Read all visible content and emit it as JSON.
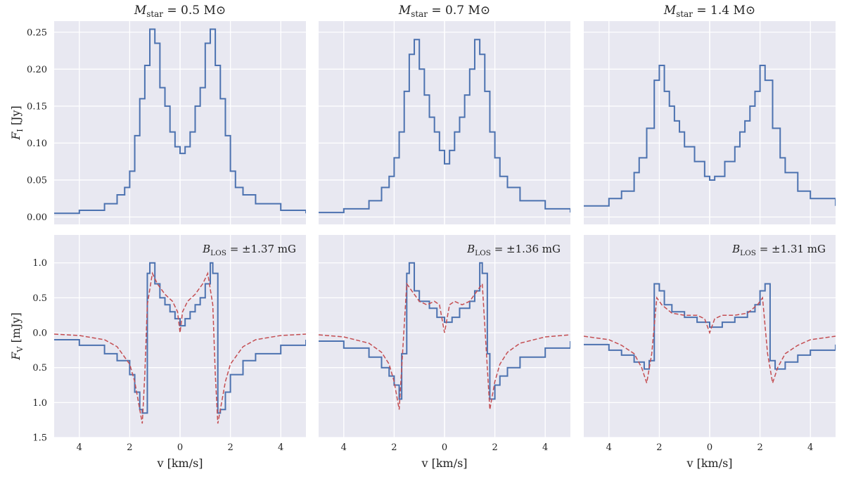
{
  "figure": {
    "column_titles": [
      "M_star = 0.5 M⊙",
      "M_star = 0.7 M⊙",
      "M_star = 1.4 M⊙"
    ],
    "top_ylabel": "F_I [Jy]",
    "bottom_ylabel": "F_V [mJy]",
    "xlabel": "v [km/s]",
    "colors": {
      "panel_bg": "#e8e8f1",
      "grid": "#ffffff",
      "stokes": "#4c72b0",
      "model": "#c44e52"
    }
  },
  "chart_data": [
    {
      "type": "line",
      "panel": "top-1",
      "title": "M_star = 0.5 M⊙",
      "xlim": [
        -5,
        5
      ],
      "ylim": [
        -0.01,
        0.265
      ],
      "xticks": [
        -4,
        -2,
        0,
        2,
        4
      ],
      "xticklabels": [
        "4",
        "2",
        "0",
        "2",
        "4"
      ],
      "yticks": [
        0,
        0.05,
        0.1,
        0.15,
        0.2,
        0.25
      ],
      "yticklabels": [
        "0.00",
        "0.05",
        "0.10",
        "0.15",
        "0.20",
        "0.25"
      ],
      "grid": true,
      "series": [
        {
          "style": "step",
          "color": "#4c72b0",
          "x": [
            -5,
            -4,
            -3,
            -2.5,
            -2.2,
            -2,
            -1.8,
            -1.6,
            -1.4,
            -1.2,
            -1.0,
            -0.8,
            -0.6,
            -0.4,
            -0.2,
            0,
            0.2,
            0.4,
            0.6,
            0.8,
            1.0,
            1.2,
            1.4,
            1.6,
            1.8,
            2,
            2.2,
            2.5,
            3,
            4,
            5
          ],
          "y": [
            0.005,
            0.009,
            0.018,
            0.03,
            0.04,
            0.062,
            0.11,
            0.16,
            0.205,
            0.254,
            0.235,
            0.175,
            0.15,
            0.115,
            0.095,
            0.086,
            0.095,
            0.115,
            0.15,
            0.175,
            0.235,
            0.254,
            0.205,
            0.16,
            0.11,
            0.062,
            0.04,
            0.03,
            0.018,
            0.009,
            0.005
          ]
        }
      ]
    },
    {
      "type": "line",
      "panel": "top-2",
      "title": "M_star = 0.7 M⊙",
      "xlim": [
        -5,
        5
      ],
      "ylim": [
        -0.01,
        0.265
      ],
      "xticks": [
        -4,
        -2,
        0,
        2,
        4
      ],
      "xticklabels": [
        "4",
        "2",
        "0",
        "2",
        "4"
      ],
      "yticks": [
        0,
        0.05,
        0.1,
        0.15,
        0.2,
        0.25
      ],
      "grid": true,
      "series": [
        {
          "style": "step",
          "color": "#4c72b0",
          "x": [
            -5,
            -4,
            -3,
            -2.5,
            -2.2,
            -2,
            -1.8,
            -1.6,
            -1.4,
            -1.2,
            -1.0,
            -0.8,
            -0.6,
            -0.4,
            -0.2,
            0,
            0.2,
            0.4,
            0.6,
            0.8,
            1.0,
            1.2,
            1.4,
            1.6,
            1.8,
            2,
            2.2,
            2.5,
            3,
            4,
            5
          ],
          "y": [
            0.006,
            0.011,
            0.022,
            0.04,
            0.055,
            0.08,
            0.115,
            0.17,
            0.22,
            0.24,
            0.2,
            0.165,
            0.135,
            0.115,
            0.09,
            0.072,
            0.09,
            0.115,
            0.135,
            0.165,
            0.2,
            0.24,
            0.22,
            0.17,
            0.115,
            0.08,
            0.055,
            0.04,
            0.022,
            0.011,
            0.006
          ]
        }
      ]
    },
    {
      "type": "line",
      "panel": "top-3",
      "title": "M_star = 1.4 M⊙",
      "xlim": [
        -5,
        5
      ],
      "ylim": [
        -0.01,
        0.265
      ],
      "xticks": [
        -4,
        -2,
        0,
        2,
        4
      ],
      "xticklabels": [
        "4",
        "2",
        "0",
        "2",
        "4"
      ],
      "yticks": [
        0,
        0.05,
        0.1,
        0.15,
        0.2,
        0.25
      ],
      "grid": true,
      "series": [
        {
          "style": "step",
          "color": "#4c72b0",
          "x": [
            -5,
            -4,
            -3.5,
            -3,
            -2.8,
            -2.5,
            -2.2,
            -2,
            -1.8,
            -1.6,
            -1.4,
            -1.2,
            -1.0,
            -0.6,
            -0.2,
            0,
            0.2,
            0.6,
            1.0,
            1.2,
            1.4,
            1.6,
            1.8,
            2,
            2.2,
            2.5,
            2.8,
            3,
            3.5,
            4,
            5
          ],
          "y": [
            0.015,
            0.025,
            0.035,
            0.06,
            0.08,
            0.12,
            0.185,
            0.205,
            0.17,
            0.15,
            0.13,
            0.115,
            0.095,
            0.075,
            0.055,
            0.05,
            0.055,
            0.075,
            0.095,
            0.115,
            0.13,
            0.15,
            0.17,
            0.205,
            0.185,
            0.12,
            0.08,
            0.06,
            0.035,
            0.025,
            0.015
          ]
        }
      ]
    },
    {
      "type": "line",
      "panel": "bottom-1",
      "annotation": "B_LOS = ±1.37 mG",
      "xlim": [
        -5,
        5
      ],
      "ylim": [
        -1.5,
        1.4
      ],
      "xticks": [
        -4,
        -2,
        0,
        2,
        4
      ],
      "xticklabels": [
        "4",
        "2",
        "0",
        "2",
        "4"
      ],
      "yticks": [
        -1.5,
        -1.0,
        -0.5,
        0,
        0.5,
        1.0
      ],
      "yticklabels": [
        "1.5",
        "1.0",
        "0.5",
        "0.0",
        "0.5",
        "1.0"
      ],
      "grid": true,
      "series": [
        {
          "style": "step",
          "color": "#4c72b0",
          "x": [
            -5,
            -4,
            -3,
            -2.5,
            -2,
            -1.8,
            -1.6,
            -1.5,
            -1.3,
            -1.2,
            -1.0,
            -0.8,
            -0.6,
            -0.4,
            -0.2,
            0,
            0.2,
            0.4,
            0.6,
            0.8,
            1.0,
            1.2,
            1.3,
            1.5,
            1.6,
            1.8,
            2,
            2.5,
            3,
            4,
            5
          ],
          "y": [
            -0.1,
            -0.18,
            -0.3,
            -0.4,
            -0.6,
            -0.85,
            -1.1,
            -1.15,
            0.85,
            1.0,
            0.7,
            0.5,
            0.4,
            0.3,
            0.2,
            0.1,
            0.2,
            0.3,
            0.4,
            0.5,
            0.7,
            1.0,
            0.85,
            -1.15,
            -1.1,
            -0.85,
            -0.6,
            -0.4,
            -0.3,
            -0.18,
            -0.1
          ]
        },
        {
          "style": "dashed",
          "color": "#c44e52",
          "x": [
            -5,
            -4,
            -3,
            -2.5,
            -2,
            -1.8,
            -1.6,
            -1.5,
            -1.4,
            -1.3,
            -1.1,
            -0.9,
            -0.6,
            -0.3,
            -0.1,
            0,
            0.1,
            0.3,
            0.6,
            0.9,
            1.1,
            1.3,
            1.4,
            1.5,
            1.6,
            1.8,
            2,
            2.5,
            3,
            4,
            5
          ],
          "y": [
            -0.02,
            -0.04,
            -0.1,
            -0.2,
            -0.45,
            -0.7,
            -1.1,
            -1.3,
            -0.6,
            0.4,
            0.85,
            0.7,
            0.55,
            0.45,
            0.3,
            0.0,
            0.3,
            0.45,
            0.55,
            0.7,
            0.85,
            0.4,
            -0.6,
            -1.3,
            -1.1,
            -0.7,
            -0.45,
            -0.2,
            -0.1,
            -0.04,
            -0.02
          ]
        }
      ]
    },
    {
      "type": "line",
      "panel": "bottom-2",
      "annotation": "B_LOS = ±1.36 mG",
      "xlim": [
        -5,
        5
      ],
      "ylim": [
        -1.5,
        1.4
      ],
      "xticks": [
        -4,
        -2,
        0,
        2,
        4
      ],
      "xticklabels": [
        "4",
        "2",
        "0",
        "2",
        "4"
      ],
      "yticks": [
        -1.5,
        -1.0,
        -0.5,
        0,
        0.5,
        1.0
      ],
      "grid": true,
      "series": [
        {
          "style": "step",
          "color": "#4c72b0",
          "x": [
            -5,
            -4,
            -3,
            -2.5,
            -2.2,
            -2,
            -1.8,
            -1.7,
            -1.5,
            -1.4,
            -1.2,
            -1.0,
            -0.6,
            -0.3,
            0,
            0.3,
            0.6,
            1.0,
            1.2,
            1.4,
            1.5,
            1.7,
            1.8,
            2,
            2.2,
            2.5,
            3,
            4,
            5
          ],
          "y": [
            -0.12,
            -0.22,
            -0.35,
            -0.5,
            -0.62,
            -0.75,
            -0.95,
            -0.3,
            0.85,
            1.0,
            0.6,
            0.45,
            0.35,
            0.22,
            0.15,
            0.22,
            0.35,
            0.45,
            0.6,
            1.0,
            0.85,
            -0.3,
            -0.95,
            -0.75,
            -0.62,
            -0.5,
            -0.35,
            -0.22,
            -0.12
          ]
        },
        {
          "style": "dashed",
          "color": "#c44e52",
          "x": [
            -5,
            -4,
            -3,
            -2.5,
            -2.2,
            -2,
            -1.8,
            -1.7,
            -1.5,
            -1.3,
            -1.0,
            -0.7,
            -0.4,
            -0.2,
            0,
            0.2,
            0.4,
            0.7,
            1.0,
            1.3,
            1.5,
            1.7,
            1.8,
            2,
            2.2,
            2.5,
            3,
            4,
            5
          ],
          "y": [
            -0.03,
            -0.06,
            -0.15,
            -0.28,
            -0.45,
            -0.7,
            -1.1,
            -0.5,
            0.7,
            0.6,
            0.45,
            0.4,
            0.45,
            0.4,
            0.0,
            0.4,
            0.45,
            0.4,
            0.45,
            0.6,
            0.7,
            -0.5,
            -1.1,
            -0.7,
            -0.45,
            -0.28,
            -0.15,
            -0.06,
            -0.03
          ]
        }
      ]
    },
    {
      "type": "line",
      "panel": "bottom-3",
      "annotation": "B_LOS = ±1.31 mG",
      "xlim": [
        -5,
        5
      ],
      "ylim": [
        -1.5,
        1.4
      ],
      "xticks": [
        -4,
        -2,
        0,
        2,
        4
      ],
      "xticklabels": [
        "4",
        "2",
        "0",
        "2",
        "4"
      ],
      "yticks": [
        -1.5,
        -1.0,
        -0.5,
        0,
        0.5,
        1.0
      ],
      "grid": true,
      "series": [
        {
          "style": "step",
          "color": "#4c72b0",
          "x": [
            -5,
            -4,
            -3.5,
            -3,
            -2.6,
            -2.4,
            -2.2,
            -2.0,
            -1.8,
            -1.5,
            -1.0,
            -0.5,
            0,
            0.5,
            1.0,
            1.5,
            1.8,
            2.0,
            2.2,
            2.4,
            2.6,
            3,
            3.5,
            4,
            5
          ],
          "y": [
            -0.17,
            -0.25,
            -0.32,
            -0.42,
            -0.52,
            -0.4,
            0.7,
            0.6,
            0.4,
            0.3,
            0.22,
            0.15,
            0.08,
            0.15,
            0.22,
            0.3,
            0.4,
            0.6,
            0.7,
            -0.4,
            -0.52,
            -0.42,
            -0.32,
            -0.25,
            -0.17
          ]
        },
        {
          "style": "dashed",
          "color": "#c44e52",
          "x": [
            -5,
            -4,
            -3.5,
            -3,
            -2.7,
            -2.5,
            -2.3,
            -2.1,
            -1.9,
            -1.5,
            -1.0,
            -0.5,
            -0.2,
            0,
            0.2,
            0.5,
            1.0,
            1.5,
            1.9,
            2.1,
            2.3,
            2.5,
            2.7,
            3,
            3.5,
            4,
            5
          ],
          "y": [
            -0.05,
            -0.1,
            -0.18,
            -0.3,
            -0.5,
            -0.72,
            -0.3,
            0.5,
            0.4,
            0.28,
            0.25,
            0.25,
            0.2,
            0.0,
            0.2,
            0.25,
            0.25,
            0.28,
            0.4,
            0.5,
            -0.3,
            -0.72,
            -0.5,
            -0.3,
            -0.18,
            -0.1,
            -0.05
          ]
        }
      ]
    }
  ]
}
